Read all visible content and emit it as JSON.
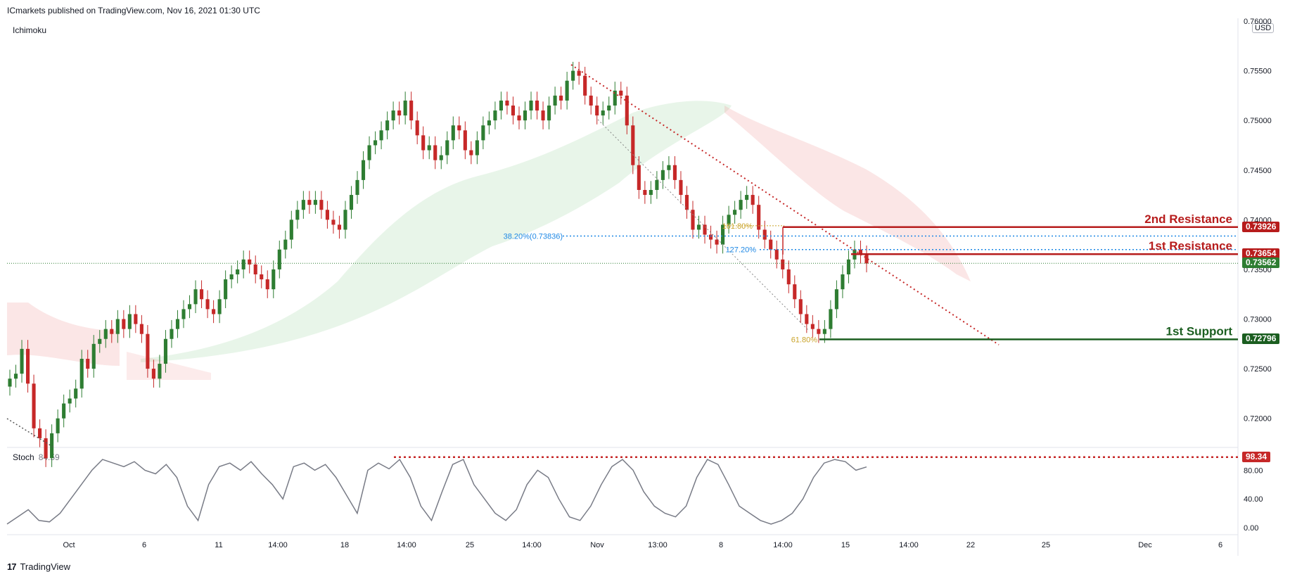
{
  "header": {
    "publisher": "ICmarkets published on TradingView.com, Nov 16, 2021 01:30 UTC"
  },
  "indicator": {
    "name": "Ichimoku"
  },
  "stoch": {
    "name": "Stoch",
    "value": "84.59",
    "level_label": "98.34"
  },
  "currency": "USD",
  "footer": {
    "brand": "TradingView",
    "logo": "17"
  },
  "colors": {
    "up": "#2e7d32",
    "down": "#c62828",
    "resistance": "#b71c1c",
    "support": "#1b5e20",
    "fib_blue": "#1e88e5",
    "fib_gold": "#c9a227",
    "stoch_line": "#787b86"
  },
  "chart_data": {
    "type": "candlestick",
    "price_axis": {
      "min": 0.7175,
      "max": 0.76,
      "ticks": [
        "0.76000",
        "0.75500",
        "0.75000",
        "0.74500",
        "0.74000",
        "0.73500",
        "0.73000",
        "0.72500",
        "0.72000"
      ],
      "tick_values": [
        0.76,
        0.755,
        0.75,
        0.745,
        0.74,
        0.735,
        0.73,
        0.725,
        0.72
      ]
    },
    "time_axis": {
      "labels": [
        "Oct",
        "6",
        "11",
        "14:00",
        "18",
        "14:00",
        "25",
        "14:00",
        "Nov",
        "13:00",
        "8",
        "14:00",
        "15",
        "14:00",
        "22",
        "25",
        "Dec",
        "6"
      ]
    },
    "candles": [
      0.724,
      0.7245,
      0.727,
      0.7235,
      0.719,
      0.718,
      0.716,
      0.7185,
      0.72,
      0.7215,
      0.722,
      0.723,
      0.726,
      0.725,
      0.7275,
      0.728,
      0.729,
      0.7285,
      0.73,
      0.729,
      0.7305,
      0.7295,
      0.7285,
      0.725,
      0.724,
      0.7255,
      0.728,
      0.729,
      0.73,
      0.731,
      0.7315,
      0.733,
      0.732,
      0.731,
      0.7305,
      0.732,
      0.734,
      0.7345,
      0.735,
      0.736,
      0.7355,
      0.7345,
      0.734,
      0.733,
      0.735,
      0.737,
      0.738,
      0.74,
      0.741,
      0.742,
      0.7415,
      0.742,
      0.741,
      0.74,
      0.7395,
      0.739,
      0.741,
      0.7425,
      0.744,
      0.746,
      0.7475,
      0.748,
      0.749,
      0.75,
      0.751,
      0.7505,
      0.752,
      0.75,
      0.7485,
      0.747,
      0.7475,
      0.746,
      0.7465,
      0.748,
      0.7495,
      0.749,
      0.747,
      0.7465,
      0.748,
      0.7495,
      0.75,
      0.751,
      0.752,
      0.7515,
      0.7505,
      0.75,
      0.751,
      0.752,
      0.751,
      0.75,
      0.7515,
      0.7525,
      0.752,
      0.754,
      0.755,
      0.7545,
      0.7525,
      0.7515,
      0.7505,
      0.751,
      0.7515,
      0.753,
      0.7525,
      0.7495,
      0.7455,
      0.743,
      0.7425,
      0.743,
      0.744,
      0.745,
      0.7455,
      0.744,
      0.7425,
      0.741,
      0.739,
      0.7395,
      0.7385,
      0.738,
      0.7375,
      0.7395,
      0.7405,
      0.741,
      0.742,
      0.7425,
      0.7415,
      0.739,
      0.738,
      0.737,
      0.736,
      0.735,
      0.7335,
      0.732,
      0.7305,
      0.7295,
      0.729,
      0.7285,
      0.729,
      0.731,
      0.733,
      0.7345,
      0.736,
      0.737,
      0.7365,
      0.7356
    ],
    "stoch_axis": {
      "ticks": [
        "80.00",
        "40.00",
        "0.00"
      ],
      "tick_values": [
        80,
        40,
        0
      ]
    },
    "stoch_values": [
      5,
      15,
      25,
      10,
      8,
      20,
      40,
      60,
      80,
      95,
      90,
      85,
      92,
      80,
      75,
      88,
      70,
      30,
      10,
      60,
      85,
      90,
      80,
      92,
      75,
      60,
      40,
      85,
      90,
      80,
      88,
      70,
      45,
      20,
      80,
      90,
      82,
      95,
      70,
      30,
      10,
      50,
      88,
      95,
      60,
      40,
      20,
      10,
      25,
      60,
      80,
      70,
      40,
      15,
      10,
      30,
      60,
      85,
      95,
      80,
      50,
      30,
      20,
      15,
      30,
      70,
      95,
      88,
      60,
      30,
      20,
      10,
      5,
      10,
      20,
      40,
      70,
      90,
      95,
      92,
      80,
      84.59
    ],
    "levels": [
      {
        "label": "2nd Resistance",
        "price": 0.73926,
        "price_label": "0.73926",
        "color": "#b71c1c"
      },
      {
        "label": "1st Resistance",
        "price": 0.73654,
        "price_label": "0.73654",
        "color": "#b71c1c"
      },
      {
        "label": "",
        "price": 0.73562,
        "price_label": "0.73562",
        "color": "#2e7d32"
      },
      {
        "label": "1st Support",
        "price": 0.72796,
        "price_label": "0.72796",
        "color": "#1b5e20"
      }
    ],
    "fibs": [
      {
        "text": "38.20%(0.73836)",
        "price": 0.73836,
        "color": "#1e88e5"
      },
      {
        "text": "127.20%",
        "price": 0.737,
        "color": "#1e88e5"
      },
      {
        "text": "161.80%",
        "price": 0.7394,
        "color": "#c9a227"
      },
      {
        "text": "61.80%",
        "price": 0.72796,
        "color": "#c9a227"
      }
    ]
  }
}
